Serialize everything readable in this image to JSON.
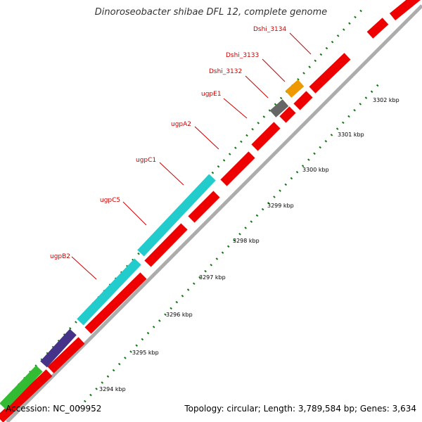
{
  "title": "Dinoroseobacter shibae DFL 12, complete genome",
  "footer": {
    "accession": "Accession: NC_009952",
    "summary": "Topology: circular; Length: 3,789,584 bp; Genes: 3,634"
  },
  "gene_labels": [
    "Dshi_3134",
    "Dshi_3133",
    "Dshi_3132",
    "ugpE1",
    "ugpA2",
    "ugpC1",
    "ugpC5",
    "ugpB2"
  ],
  "kbp_labels": [
    "3302 kbp",
    "3301 kbp",
    "3300 kbp",
    "3299 kbp",
    "3298 kbp",
    "3297 kbp",
    "3296 kbp",
    "3295 kbp",
    "3294 kbp"
  ],
  "colors": {
    "forward_red": "#ee0000",
    "cyan": "#22cccc",
    "navy": "#443388",
    "green": "#33bb33",
    "grey": "#666666",
    "orange": "#ee9900",
    "tick_green": "#117711",
    "label_red": "#cc0000"
  }
}
